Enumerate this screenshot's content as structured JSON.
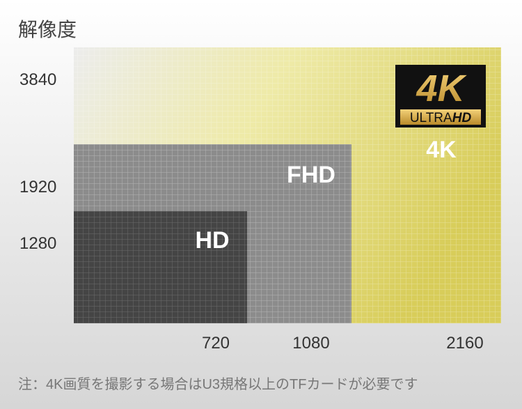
{
  "header": {
    "title": "解像度"
  },
  "y_labels": [
    "3840",
    "1920",
    "1280"
  ],
  "x_labels": [
    "720",
    "1080",
    "2160"
  ],
  "regions": [
    {
      "label": "4K"
    },
    {
      "label": "FHD"
    },
    {
      "label": "HD"
    }
  ],
  "badge": {
    "big": "4K",
    "ultra": "ULTRA",
    "hd": "HD"
  },
  "note": "注：4K画質を撮影する場合はU3規格以上のTFカードが必要です"
}
